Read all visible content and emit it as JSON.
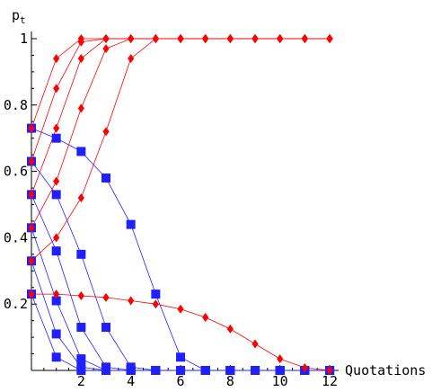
{
  "chart_data": {
    "type": "line",
    "title": "",
    "xlabel": "Quotations",
    "ylabel_main": "p",
    "ylabel_sub": "t",
    "xlim": [
      0,
      12
    ],
    "ylim": [
      0,
      1
    ],
    "x_ticks": [
      "2",
      "4",
      "6",
      "8",
      "10",
      "12"
    ],
    "y_ticks": [
      "0.2",
      "0.4",
      "0.6",
      "0.8",
      "1"
    ],
    "grid": false,
    "series": [
      {
        "group": "red",
        "marker": "diamond",
        "color": "#ff0000",
        "x": [
          0,
          1,
          2,
          3,
          4,
          5,
          6,
          7,
          8,
          9,
          10,
          11,
          12
        ],
        "y": [
          0.73,
          0.94,
          1.0,
          1.0,
          1.0,
          1.0,
          1.0,
          1.0,
          1.0,
          1.0,
          1.0,
          1.0,
          1.0
        ]
      },
      {
        "group": "red",
        "marker": "diamond",
        "color": "#ff0000",
        "x": [
          0,
          1,
          2,
          3,
          4,
          5,
          6,
          7,
          8,
          9,
          10,
          11,
          12
        ],
        "y": [
          0.63,
          0.85,
          0.99,
          1.0,
          1.0,
          1.0,
          1.0,
          1.0,
          1.0,
          1.0,
          1.0,
          1.0,
          1.0
        ]
      },
      {
        "group": "red",
        "marker": "diamond",
        "color": "#ff0000",
        "x": [
          0,
          1,
          2,
          3,
          4,
          5,
          6,
          7,
          8,
          9,
          10,
          11,
          12
        ],
        "y": [
          0.53,
          0.73,
          0.94,
          1.0,
          1.0,
          1.0,
          1.0,
          1.0,
          1.0,
          1.0,
          1.0,
          1.0,
          1.0
        ]
      },
      {
        "group": "red",
        "marker": "diamond",
        "color": "#ff0000",
        "x": [
          0,
          1,
          2,
          3,
          4,
          5,
          6,
          7,
          8,
          9,
          10,
          11,
          12
        ],
        "y": [
          0.43,
          0.57,
          0.79,
          0.97,
          1.0,
          1.0,
          1.0,
          1.0,
          1.0,
          1.0,
          1.0,
          1.0,
          1.0
        ]
      },
      {
        "group": "red",
        "marker": "diamond",
        "color": "#ff0000",
        "x": [
          0,
          1,
          2,
          3,
          4,
          5,
          6,
          7,
          8,
          9,
          10,
          11,
          12
        ],
        "y": [
          0.33,
          0.4,
          0.52,
          0.72,
          0.94,
          1.0,
          1.0,
          1.0,
          1.0,
          1.0,
          1.0,
          1.0,
          1.0
        ]
      },
      {
        "group": "red",
        "marker": "diamond",
        "color": "#ff0000",
        "x": [
          0,
          1,
          2,
          3,
          4,
          5,
          6,
          7,
          8,
          9,
          10,
          11,
          12
        ],
        "y": [
          0.23,
          0.23,
          0.225,
          0.22,
          0.21,
          0.2,
          0.185,
          0.16,
          0.125,
          0.08,
          0.035,
          0.008,
          0.0
        ]
      },
      {
        "group": "blue",
        "marker": "square",
        "color": "#2020ff",
        "x": [
          0,
          1,
          2,
          3,
          4,
          5,
          6,
          7,
          8,
          9,
          10,
          11,
          12
        ],
        "y": [
          0.73,
          0.7,
          0.66,
          0.58,
          0.44,
          0.23,
          0.04,
          0.0,
          0.0,
          0.0,
          0.0,
          0.0,
          0.0
        ]
      },
      {
        "group": "blue",
        "marker": "square",
        "color": "#2020ff",
        "x": [
          0,
          1,
          2,
          3,
          4,
          5,
          6,
          7,
          8,
          9,
          10,
          11,
          12
        ],
        "y": [
          0.63,
          0.53,
          0.35,
          0.13,
          0.01,
          0.0,
          0.0,
          0.0,
          0.0,
          0.0,
          0.0,
          0.0,
          0.0
        ]
      },
      {
        "group": "blue",
        "marker": "square",
        "color": "#2020ff",
        "x": [
          0,
          1,
          2,
          3,
          4,
          5,
          6,
          7,
          8,
          9,
          10,
          11,
          12
        ],
        "y": [
          0.53,
          0.36,
          0.13,
          0.01,
          0.0,
          0.0,
          0.0,
          0.0,
          0.0,
          0.0,
          0.0,
          0.0,
          0.0
        ]
      },
      {
        "group": "blue",
        "marker": "square",
        "color": "#2020ff",
        "x": [
          0,
          1,
          2,
          3,
          4,
          5,
          6,
          7,
          8,
          9,
          10,
          11,
          12
        ],
        "y": [
          0.43,
          0.21,
          0.035,
          0.0,
          0.0,
          0.0,
          0.0,
          0.0,
          0.0,
          0.0,
          0.0,
          0.0,
          0.0
        ]
      },
      {
        "group": "blue",
        "marker": "square",
        "color": "#2020ff",
        "x": [
          0,
          1,
          2,
          3,
          4,
          5,
          6,
          7,
          8,
          9,
          10,
          11,
          12
        ],
        "y": [
          0.33,
          0.11,
          0.01,
          0.0,
          0.0,
          0.0,
          0.0,
          0.0,
          0.0,
          0.0,
          0.0,
          0.0,
          0.0
        ]
      },
      {
        "group": "blue",
        "marker": "square",
        "color": "#2020ff",
        "x": [
          0,
          1,
          2,
          3,
          4,
          5,
          6,
          7,
          8,
          9,
          10,
          11,
          12
        ],
        "y": [
          0.23,
          0.04,
          0.0,
          0.0,
          0.0,
          0.0,
          0.0,
          0.0,
          0.0,
          0.0,
          0.0,
          0.0,
          0.0
        ]
      }
    ]
  }
}
